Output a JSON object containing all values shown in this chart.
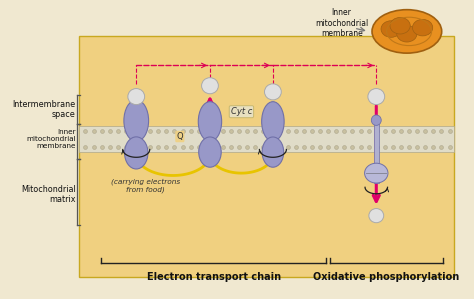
{
  "bg_outer": "#f0e8d0",
  "bg_main": "#f0d080",
  "membrane_top_color": "#d8d0b8",
  "membrane_dot_color": "#c8c0a0",
  "protein_fill": "#9898c8",
  "protein_edge": "#7070a8",
  "proton_fill": "#e0e0e0",
  "proton_edge": "#aaaaaa",
  "arrow_pink": "#e0006a",
  "arrow_dashed_color": "#dd0055",
  "yellow_line": "#e8c400",
  "dark_line": "#222222",
  "label_color": "#111111",
  "mito_outer": "#e89020",
  "mito_inner": "#c87010",
  "mito_fill2": "#d4a040",
  "label_intermembrane": "Intermembrane\nspace",
  "label_inner_mem": "Inner\nmitochondrial\nmembrane",
  "label_matrix": "Mitochondrial\nmatrix",
  "label_carrying": "(carrying electrons\nfrom food)",
  "label_etc": "Electron transport chain",
  "label_ox": "Oxidative phosphorylation",
  "label_cytc": "Cyt c",
  "label_q": "Q",
  "label_inner_mito": "Inner\nmitochondrial\nmembrane",
  "fig_width": 4.74,
  "fig_height": 2.99,
  "xlim": [
    0,
    10
  ],
  "ylim": [
    0,
    6.3
  ]
}
